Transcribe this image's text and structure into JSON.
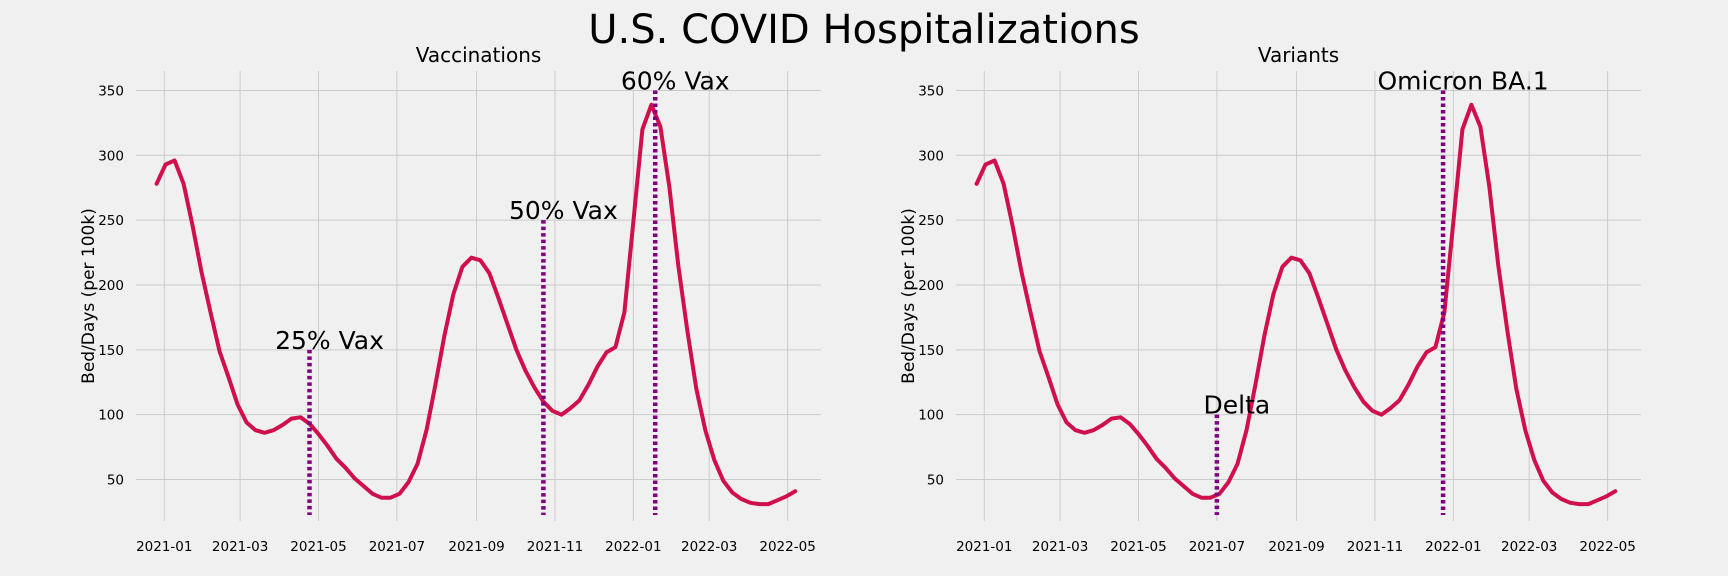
{
  "figure": {
    "suptitle": "U.S. COVID Hospitalizations"
  },
  "colors": {
    "background": "#f0f0f0",
    "grid": "#cbcbcb",
    "line": "#d0104c",
    "marker": "#800080"
  },
  "chart_data": [
    {
      "type": "line",
      "title": "Vaccinations",
      "xlabel": "",
      "ylabel": "Bed/Days (per 100k)",
      "grid": true,
      "x_ticks": [
        "2021-01",
        "2021-03",
        "2021-05",
        "2021-07",
        "2021-09",
        "2021-11",
        "2022-01",
        "2022-03",
        "2022-05"
      ],
      "y_ticks": [
        50,
        100,
        150,
        200,
        250,
        300,
        350
      ],
      "xlim": [
        "2020-12-10",
        "2022-05-27"
      ],
      "ylim": [
        18,
        365
      ],
      "series": [
        {
          "x": [
            "2020-12-26",
            "2021-01-02",
            "2021-01-09",
            "2021-01-16",
            "2021-01-23",
            "2021-01-30",
            "2021-02-06",
            "2021-02-13",
            "2021-02-20",
            "2021-02-27",
            "2021-03-06",
            "2021-03-13",
            "2021-03-20",
            "2021-03-27",
            "2021-04-03",
            "2021-04-10",
            "2021-04-17",
            "2021-04-24",
            "2021-05-01",
            "2021-05-08",
            "2021-05-15",
            "2021-05-22",
            "2021-05-29",
            "2021-06-05",
            "2021-06-12",
            "2021-06-19",
            "2021-06-26",
            "2021-07-03",
            "2021-07-10",
            "2021-07-17",
            "2021-07-24",
            "2021-07-31",
            "2021-08-07",
            "2021-08-14",
            "2021-08-21",
            "2021-08-28",
            "2021-09-04",
            "2021-09-11",
            "2021-09-18",
            "2021-09-25",
            "2021-10-02",
            "2021-10-09",
            "2021-10-16",
            "2021-10-23",
            "2021-10-30",
            "2021-11-06",
            "2021-11-13",
            "2021-11-20",
            "2021-11-27",
            "2021-12-04",
            "2021-12-11",
            "2021-12-18",
            "2021-12-25",
            "2022-01-01",
            "2022-01-08",
            "2022-01-15",
            "2022-01-22",
            "2022-01-29",
            "2022-02-05",
            "2022-02-12",
            "2022-02-19",
            "2022-02-26",
            "2022-03-05",
            "2022-03-12",
            "2022-03-19",
            "2022-03-26",
            "2022-04-02",
            "2022-04-09",
            "2022-04-16",
            "2022-04-23",
            "2022-04-30",
            "2022-05-07"
          ],
          "y": [
            278,
            293,
            296,
            278,
            246,
            210,
            179,
            149,
            129,
            108,
            94,
            88,
            86,
            88,
            92,
            97,
            98,
            93,
            85,
            76,
            66,
            59,
            51,
            45,
            39,
            36,
            36,
            39,
            48,
            62,
            88,
            123,
            161,
            193,
            214,
            221,
            219,
            209,
            190,
            170,
            150,
            134,
            121,
            110,
            103,
            100,
            105,
            111,
            123,
            137,
            148,
            152,
            179,
            249,
            320,
            339,
            322,
            276,
            215,
            165,
            120,
            88,
            65,
            49,
            40,
            35,
            32,
            31,
            31,
            34,
            37,
            41
          ]
        }
      ],
      "annotations": [
        {
          "label": "25% Vax",
          "x": "2021-04-24",
          "y_top": 150
        },
        {
          "label": "50% Vax",
          "x": "2021-10-23",
          "y_top": 250
        },
        {
          "label": "60% Vax",
          "x": "2022-01-18",
          "y_top": 350
        }
      ]
    },
    {
      "type": "line",
      "title": "Variants",
      "xlabel": "",
      "ylabel": "Bed/Days (per 100k)",
      "grid": true,
      "x_ticks": [
        "2021-01",
        "2021-03",
        "2021-05",
        "2021-07",
        "2021-09",
        "2021-11",
        "2022-01",
        "2022-03",
        "2022-05"
      ],
      "y_ticks": [
        50,
        100,
        150,
        200,
        250,
        300,
        350
      ],
      "xlim": [
        "2020-12-10",
        "2022-05-27"
      ],
      "ylim": [
        18,
        365
      ],
      "series": [
        {
          "x": [
            "2020-12-26",
            "2021-01-02",
            "2021-01-09",
            "2021-01-16",
            "2021-01-23",
            "2021-01-30",
            "2021-02-06",
            "2021-02-13",
            "2021-02-20",
            "2021-02-27",
            "2021-03-06",
            "2021-03-13",
            "2021-03-20",
            "2021-03-27",
            "2021-04-03",
            "2021-04-10",
            "2021-04-17",
            "2021-04-24",
            "2021-05-01",
            "2021-05-08",
            "2021-05-15",
            "2021-05-22",
            "2021-05-29",
            "2021-06-05",
            "2021-06-12",
            "2021-06-19",
            "2021-06-26",
            "2021-07-03",
            "2021-07-10",
            "2021-07-17",
            "2021-07-24",
            "2021-07-31",
            "2021-08-07",
            "2021-08-14",
            "2021-08-21",
            "2021-08-28",
            "2021-09-04",
            "2021-09-11",
            "2021-09-18",
            "2021-09-25",
            "2021-10-02",
            "2021-10-09",
            "2021-10-16",
            "2021-10-23",
            "2021-10-30",
            "2021-11-06",
            "2021-11-13",
            "2021-11-20",
            "2021-11-27",
            "2021-12-04",
            "2021-12-11",
            "2021-12-18",
            "2021-12-25",
            "2022-01-01",
            "2022-01-08",
            "2022-01-15",
            "2022-01-22",
            "2022-01-29",
            "2022-02-05",
            "2022-02-12",
            "2022-02-19",
            "2022-02-26",
            "2022-03-05",
            "2022-03-12",
            "2022-03-19",
            "2022-03-26",
            "2022-04-02",
            "2022-04-09",
            "2022-04-16",
            "2022-04-23",
            "2022-04-30",
            "2022-05-07"
          ],
          "y": [
            278,
            293,
            296,
            278,
            246,
            210,
            179,
            149,
            129,
            108,
            94,
            88,
            86,
            88,
            92,
            97,
            98,
            93,
            85,
            76,
            66,
            59,
            51,
            45,
            39,
            36,
            36,
            39,
            48,
            62,
            88,
            123,
            161,
            193,
            214,
            221,
            219,
            209,
            190,
            170,
            150,
            134,
            121,
            110,
            103,
            100,
            105,
            111,
            123,
            137,
            148,
            152,
            179,
            249,
            320,
            339,
            322,
            276,
            215,
            165,
            120,
            88,
            65,
            49,
            40,
            35,
            32,
            31,
            31,
            34,
            37,
            41
          ]
        }
      ],
      "annotations": [
        {
          "label": "Delta",
          "x": "2021-07-01",
          "y_top": 100
        },
        {
          "label": "Omicron BA.1",
          "x": "2021-12-24",
          "y_top": 350
        }
      ]
    }
  ]
}
